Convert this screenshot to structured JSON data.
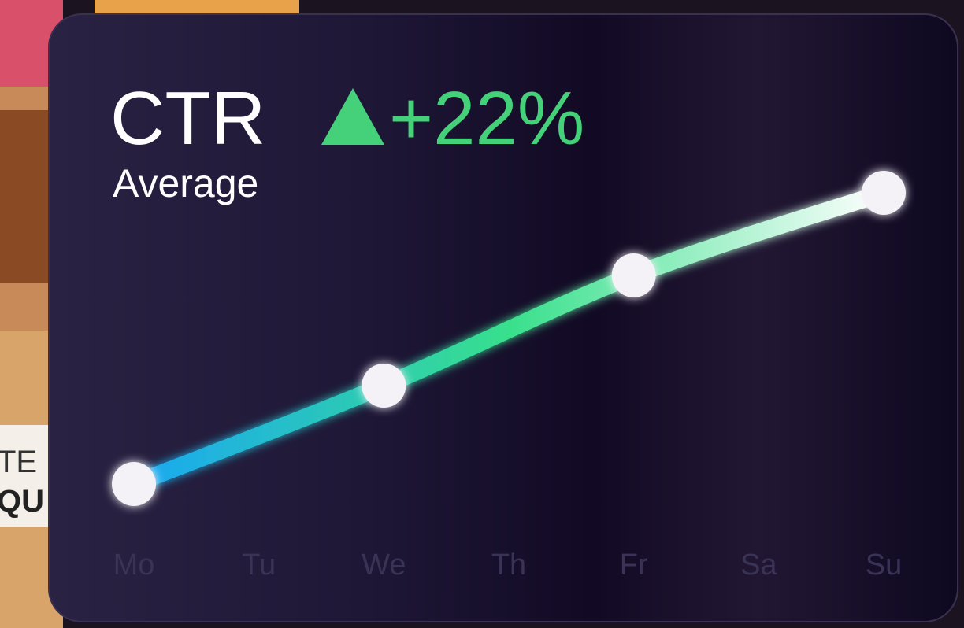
{
  "chart_data": {
    "type": "line",
    "title": "CTR",
    "subtitle": "Average",
    "annotation": "+22%",
    "xlim": [
      0,
      6
    ],
    "xticks": [
      {
        "value": 0,
        "label": "Mo"
      },
      {
        "value": 1,
        "label": "Tu"
      },
      {
        "value": 2,
        "label": "We"
      },
      {
        "value": 3,
        "label": "Th"
      },
      {
        "value": 4,
        "label": "Fr"
      },
      {
        "value": 5,
        "label": "Sa"
      },
      {
        "value": 6,
        "label": "Su"
      }
    ],
    "ylim": [
      0,
      100
    ],
    "series": [
      {
        "x": [
          0,
          2,
          4,
          6
        ],
        "values": [
          17,
          42,
          70,
          91
        ],
        "colors": [
          "#1aa8f2",
          "#38e08c",
          "#ffffff"
        ]
      }
    ]
  },
  "background": {
    "texts": [
      "TE",
      "QU"
    ]
  }
}
